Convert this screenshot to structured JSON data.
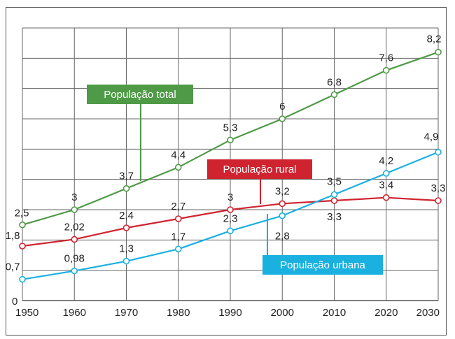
{
  "chart_data": {
    "type": "line",
    "categories": [
      "1950",
      "1960",
      "1970",
      "1980",
      "1990",
      "2000",
      "2010",
      "2020",
      "2030"
    ],
    "y_zero_label": "0",
    "ylim": [
      0,
      9
    ],
    "grid": true,
    "series": [
      {
        "name": "População total",
        "color": "#4e9a46",
        "values": [
          2.5,
          3,
          3.7,
          4.4,
          5.3,
          6,
          6.8,
          7.6,
          8.2
        ],
        "labels": [
          "2,5",
          "3",
          "3,7",
          "4,4",
          "5,3",
          "6",
          "6,8",
          "7,6",
          "8,2"
        ]
      },
      {
        "name": "População rural",
        "color": "#cf2430",
        "values": [
          1.8,
          2.02,
          2.4,
          2.7,
          3,
          3.2,
          3.3,
          3.4,
          3.3
        ],
        "labels": [
          "1,8",
          "2,02",
          "2,4",
          "2,7",
          "3",
          "3,2",
          "3,3",
          "3,4",
          "3,3"
        ]
      },
      {
        "name": "População urbana",
        "color": "#1ab0e0",
        "values": [
          0.7,
          0.98,
          1.3,
          1.7,
          2.3,
          2.8,
          3.5,
          4.2,
          4.9
        ],
        "labels": [
          "0,7",
          "0,98",
          "1,3",
          "1,7",
          "2,3",
          "2,8",
          "3,5",
          "4,2",
          "4,9"
        ]
      }
    ]
  }
}
